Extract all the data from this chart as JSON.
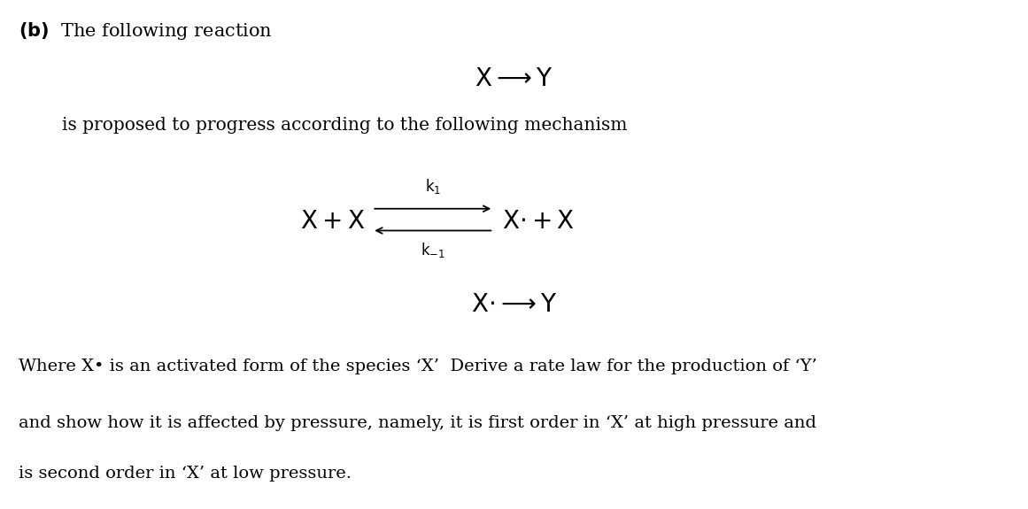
{
  "bg_color": "#ffffff",
  "text_color": "#000000",
  "fig_width": 11.61,
  "fig_height": 5.75,
  "footer1": "Where X• is an activated form of the species ‘X’  Derive a rate law for the production of ‘Y’",
  "footer2": "and show how it is affected by pressure, namely, it is first order in ‘X’ at high pressure and",
  "footer3": "is second order in ‘X’ at low pressure."
}
